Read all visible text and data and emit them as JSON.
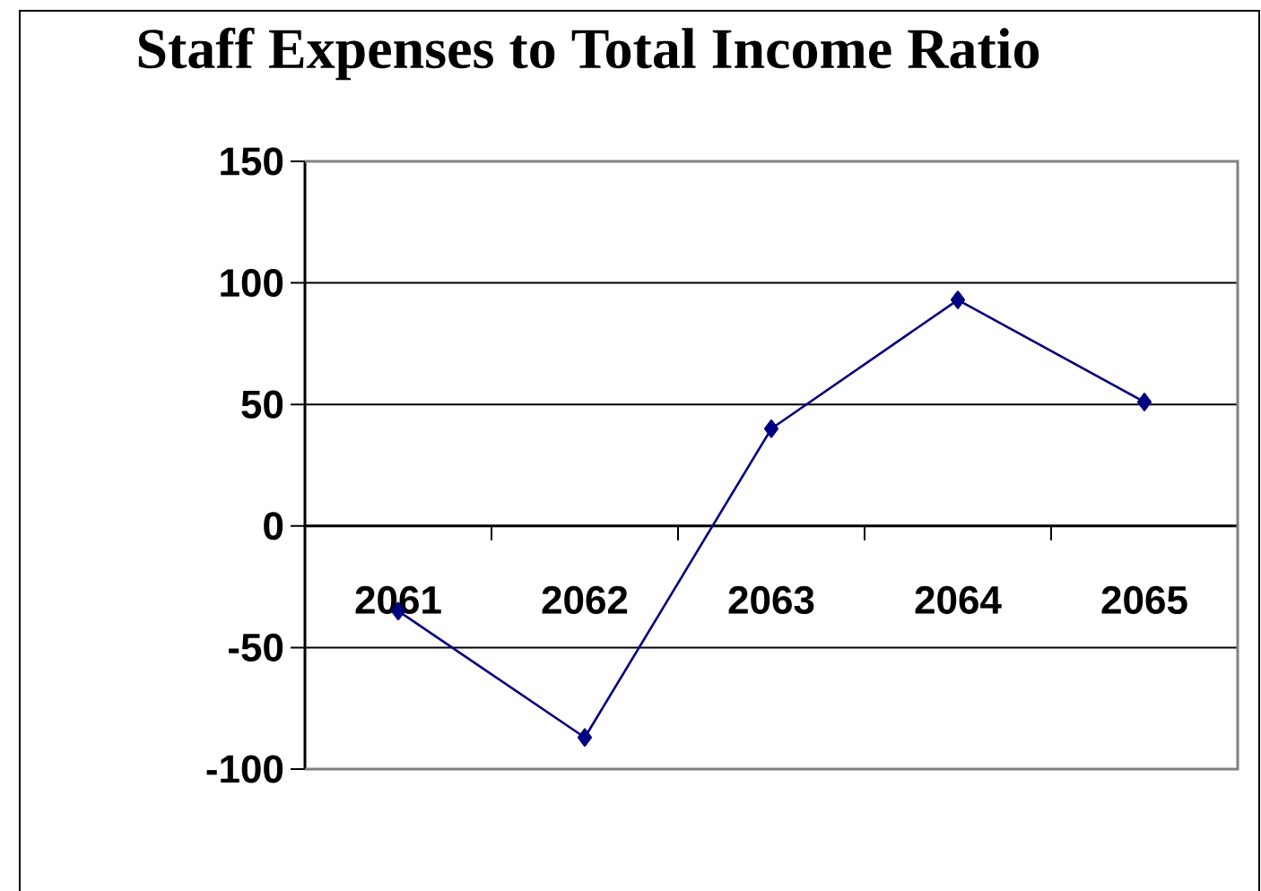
{
  "chart_data": {
    "type": "line",
    "title": "Staff Expenses to Total Income Ratio",
    "categories": [
      "2061",
      "2062",
      "2063",
      "2064",
      "2065"
    ],
    "series": [
      {
        "color": "#000080",
        "values": [
          -35,
          -87,
          40,
          93,
          51
        ]
      }
    ],
    "ylim": [
      -100,
      150
    ],
    "yticks": [
      -100,
      -50,
      0,
      50,
      100,
      150
    ],
    "grid": "y",
    "marker": "diamond",
    "line_style": "solid"
  }
}
